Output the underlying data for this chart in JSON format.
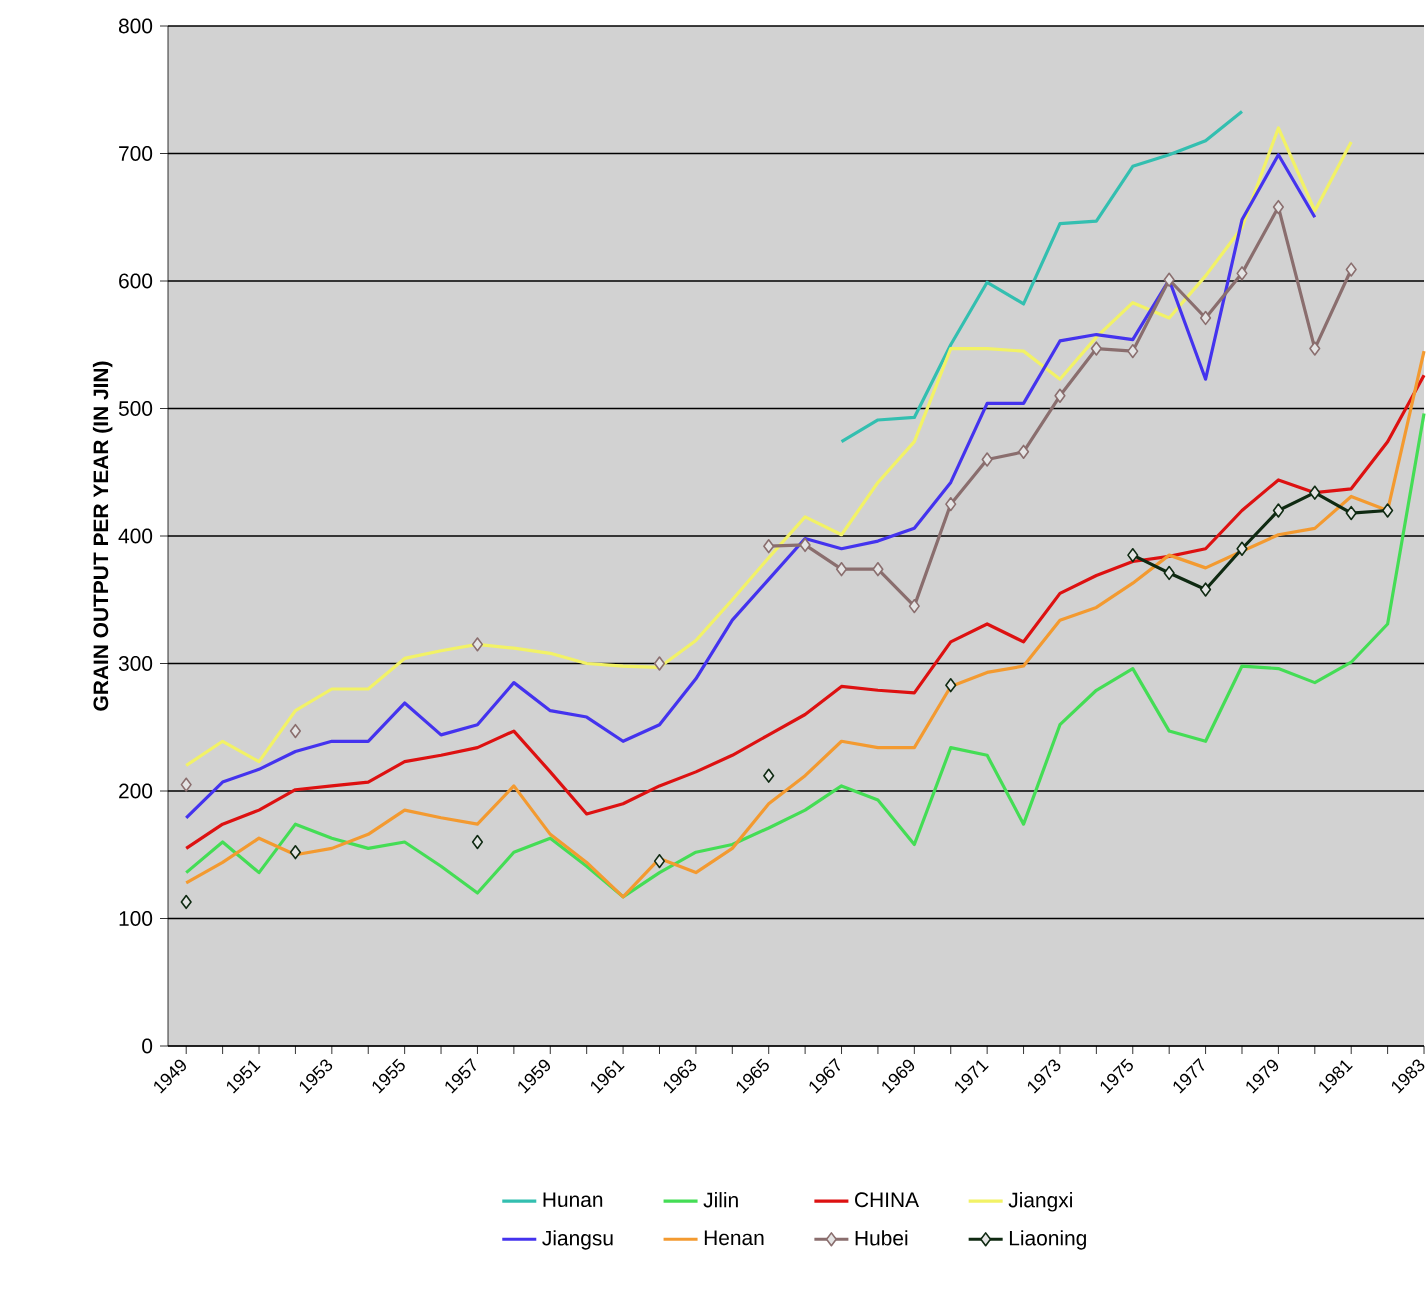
{
  "chart_data": {
    "type": "line",
    "ylabel": "GRAIN OUTPUT PER YEAR (IN  JIN)",
    "x": [
      1949,
      1950,
      1951,
      1952,
      1953,
      1954,
      1955,
      1956,
      1957,
      1958,
      1959,
      1960,
      1961,
      1962,
      1963,
      1964,
      1965,
      1966,
      1967,
      1968,
      1969,
      1970,
      1971,
      1972,
      1973,
      1974,
      1975,
      1976,
      1977,
      1978,
      1979,
      1980,
      1981,
      1982,
      1983
    ],
    "xlim": [
      1948.5,
      1983
    ],
    "xticks": [
      1949,
      {
        "value": 1950,
        "label": null
      },
      1951,
      {
        "value": 1952,
        "label": null
      },
      1953,
      {
        "value": 1954,
        "label": null
      },
      1955,
      {
        "value": 1956,
        "label": null
      },
      1957,
      {
        "value": 1958,
        "label": null
      },
      1959,
      {
        "value": 1960,
        "label": null
      },
      1961,
      {
        "value": 1962,
        "label": null
      },
      1963,
      {
        "value": 1964,
        "label": null
      },
      1965,
      {
        "value": 1966,
        "label": null
      },
      1967,
      {
        "value": 1968,
        "label": null
      },
      1969,
      {
        "value": 1970,
        "label": null
      },
      1971,
      {
        "value": 1972,
        "label": null
      },
      1973,
      {
        "value": 1974,
        "label": null
      },
      1975,
      {
        "value": 1976,
        "label": null
      },
      1977,
      {
        "value": 1978,
        "label": null
      },
      1979,
      {
        "value": 1980,
        "label": null
      },
      1981,
      {
        "value": 1982,
        "label": null
      },
      1983
    ],
    "ylim": [
      0,
      800
    ],
    "yticks": [
      0,
      100,
      200,
      300,
      400,
      500,
      600,
      700,
      800
    ],
    "grid": "y",
    "legend": "bottom",
    "line_style": "solid",
    "series": [
      {
        "name": "Hunan",
        "color": "#33bfb0",
        "marker": "none",
        "values": [
          null,
          null,
          null,
          null,
          null,
          null,
          null,
          null,
          null,
          null,
          null,
          null,
          null,
          null,
          null,
          null,
          null,
          null,
          474,
          491,
          493,
          550,
          599,
          582,
          645,
          647,
          690,
          699,
          710,
          733,
          null,
          null,
          null,
          null,
          null
        ]
      },
      {
        "name": "Jilin",
        "color": "#44dd55",
        "marker": "none",
        "values": [
          136,
          160,
          136,
          174,
          163,
          155,
          160,
          141,
          120,
          152,
          163,
          141,
          117,
          136,
          152,
          158,
          171,
          185,
          204,
          193,
          158,
          234,
          228,
          174,
          252,
          279,
          296,
          247,
          239,
          298,
          296,
          285,
          301,
          331,
          496
        ]
      },
      {
        "name": "CHINA",
        "color": "#dd1111",
        "marker": "none",
        "values": [
          155,
          174,
          185,
          201,
          204,
          207,
          223,
          228,
          234,
          247,
          215,
          182,
          190,
          204,
          215,
          228,
          244,
          260,
          282,
          279,
          277,
          317,
          331,
          317,
          355,
          369,
          380,
          384,
          390,
          420,
          444,
          434,
          437,
          474,
          526
        ]
      },
      {
        "name": "Jiangxi",
        "color": "#f2f266",
        "marker": "none",
        "values": [
          220,
          239,
          223,
          263,
          280,
          280,
          304,
          310,
          315,
          312,
          308,
          300,
          298,
          297,
          318,
          350,
          383,
          415,
          401,
          442,
          474,
          547,
          547,
          545,
          523,
          556,
          583,
          571,
          604,
          642,
          720,
          655,
          709,
          null,
          null
        ]
      },
      {
        "name": "Jiangsu",
        "color": "#4433ee",
        "marker": "none",
        "values": [
          179,
          207,
          217,
          231,
          239,
          239,
          269,
          244,
          252,
          285,
          263,
          258,
          239,
          252,
          288,
          334,
          366,
          398,
          390,
          396,
          406,
          442,
          504,
          504,
          553,
          558,
          554,
          601,
          523,
          648,
          699,
          650,
          null,
          null,
          null
        ]
      },
      {
        "name": "Henan",
        "color": "#f39a30",
        "marker": "none",
        "values": [
          128,
          144,
          163,
          150,
          155,
          166,
          185,
          179,
          174,
          204,
          166,
          144,
          117,
          147,
          136,
          155,
          190,
          212,
          239,
          234,
          234,
          282,
          293,
          298,
          334,
          344,
          363,
          385,
          375,
          388,
          401,
          406,
          431,
          420,
          545
        ]
      },
      {
        "name": "Hubei",
        "color": "#8a6e6e",
        "marker": "diamond",
        "values": [
          205,
          null,
          null,
          247,
          null,
          null,
          null,
          null,
          315,
          null,
          null,
          null,
          null,
          300,
          null,
          null,
          392,
          393,
          374,
          374,
          345,
          425,
          460,
          466,
          510,
          547,
          545,
          601,
          571,
          606,
          658,
          547,
          609,
          null,
          null
        ]
      },
      {
        "name": "Liaoning",
        "color": "#0f2a12",
        "marker": "diamond",
        "values": [
          113,
          null,
          null,
          152,
          null,
          null,
          null,
          null,
          160,
          null,
          null,
          null,
          null,
          145,
          null,
          null,
          212,
          null,
          null,
          null,
          null,
          283,
          null,
          null,
          null,
          null,
          385,
          371,
          358,
          390,
          420,
          434,
          418,
          420,
          null
        ]
      }
    ]
  }
}
